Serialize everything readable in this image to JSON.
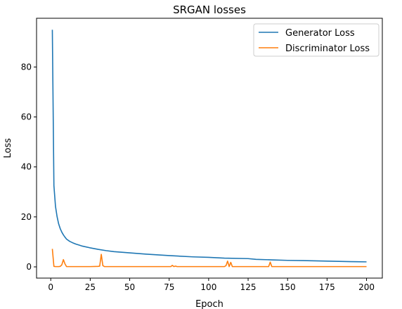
{
  "chart_data": {
    "type": "line",
    "title": "SRGAN losses",
    "xlabel": "Epoch",
    "ylabel": "Loss",
    "xlim": [
      -9,
      210
    ],
    "ylim": [
      -4.5,
      99.5
    ],
    "xticks": [
      0,
      25,
      50,
      75,
      100,
      125,
      150,
      175,
      200
    ],
    "yticks": [
      0,
      20,
      40,
      60,
      80
    ],
    "grid": false,
    "legend": "top-right",
    "series": [
      {
        "name": "Generator Loss",
        "color": "#1f77b4",
        "x": [
          1,
          2,
          3,
          4,
          5,
          6,
          7,
          8,
          9,
          10,
          12,
          14,
          16,
          18,
          20,
          25,
          30,
          35,
          40,
          50,
          60,
          75,
          90,
          100,
          110,
          125,
          130,
          140,
          150,
          160,
          175,
          190,
          200
        ],
        "y": [
          94.9,
          32.5,
          24.2,
          20.1,
          17.2,
          15.3,
          13.9,
          12.8,
          11.9,
          11.1,
          10.2,
          9.6,
          9.1,
          8.7,
          8.3,
          7.6,
          7.0,
          6.5,
          6.1,
          5.6,
          5.1,
          4.5,
          4.0,
          3.8,
          3.5,
          3.3,
          3.0,
          2.8,
          2.6,
          2.5,
          2.3,
          2.1,
          2.0
        ]
      },
      {
        "name": "Discriminator Loss",
        "color": "#ff7f0e",
        "x": [
          1,
          2,
          3,
          4,
          5,
          6,
          7,
          8,
          9,
          10,
          15,
          20,
          25,
          30,
          31,
          32,
          33,
          34,
          40,
          50,
          60,
          70,
          76,
          77,
          78,
          79,
          80,
          81,
          90,
          100,
          110,
          111,
          112,
          113,
          114,
          115,
          116,
          120,
          130,
          137,
          138,
          139,
          140,
          150,
          160,
          170,
          180,
          190,
          200
        ],
        "y": [
          7.2,
          0.2,
          0.1,
          0.1,
          0.1,
          0.2,
          0.8,
          2.9,
          1.2,
          0.1,
          0.1,
          0.1,
          0.1,
          0.2,
          0.3,
          5.0,
          0.5,
          0.1,
          0.1,
          0.1,
          0.1,
          0.1,
          0.1,
          0.6,
          0.1,
          0.3,
          0.1,
          0.1,
          0.1,
          0.1,
          0.1,
          0.5,
          2.3,
          0.1,
          1.8,
          0.1,
          0.1,
          0.1,
          0.1,
          0.1,
          0.1,
          1.9,
          0.1,
          0.1,
          0.1,
          0.1,
          0.1,
          0.1,
          0.1
        ]
      }
    ]
  }
}
